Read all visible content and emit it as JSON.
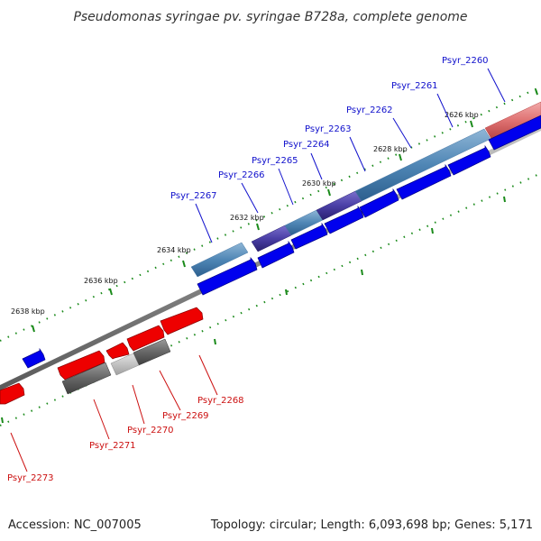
{
  "title": "Pseudomonas syringae pv. syringae B728a, complete genome",
  "footer": {
    "accession": "Accession: NC_007005",
    "topology": "Topology: circular; Length: 6,093,698 bp; Genes: 5,171"
  },
  "colors": {
    "forward": "#0000ee",
    "reverse": "#ee0000",
    "forward_label": "#1010cc",
    "reverse_label": "#cc1010",
    "backbone": "#808080",
    "tick": "#1a8a1a"
  },
  "scale_labels": [
    "2626 kbp",
    "2628 kbp",
    "2630 kbp",
    "2632 kbp",
    "2634 kbp",
    "2636 kbp",
    "2638 kbp"
  ],
  "forward_genes": [
    "Psyr_2260",
    "Psyr_2261",
    "Psyr_2262",
    "Psyr_2263",
    "Psyr_2264",
    "Psyr_2265",
    "Psyr_2266",
    "Psyr_2267"
  ],
  "reverse_genes": [
    "Psyr_2268",
    "Psyr_2269",
    "Psyr_2270",
    "Psyr_2271",
    "Psyr_2273"
  ]
}
